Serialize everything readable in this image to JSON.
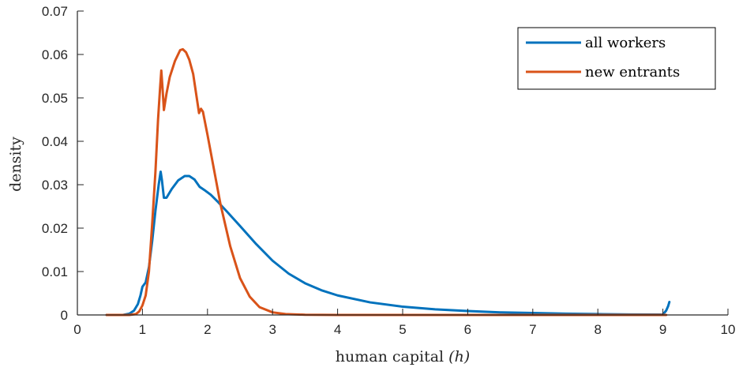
{
  "chart_data": {
    "type": "line",
    "title": "",
    "xlabel": "human capital",
    "xlabel_var": "(h)",
    "ylabel": "density",
    "xlim": [
      0,
      10
    ],
    "ylim": [
      0,
      0.07
    ],
    "x_ticks": [
      0,
      1,
      2,
      3,
      4,
      5,
      6,
      7,
      8,
      9,
      10
    ],
    "x_tick_labels": [
      "0",
      "1",
      "2",
      "3",
      "4",
      "5",
      "6",
      "7",
      "8",
      "9",
      "10"
    ],
    "y_ticks": [
      0,
      0.01,
      0.02,
      0.03,
      0.04,
      0.05,
      0.06,
      0.07
    ],
    "y_tick_labels": [
      "0",
      "0.01",
      "0.02",
      "0.03",
      "0.04",
      "0.05",
      "0.06",
      "0.07"
    ],
    "grid": false,
    "legend_position": "top-right",
    "series": [
      {
        "name": "all workers",
        "color": "#0072BD",
        "x": [
          0.45,
          0.7,
          0.8,
          0.87,
          0.93,
          0.97,
          1.0,
          1.05,
          1.1,
          1.15,
          1.2,
          1.25,
          1.28,
          1.3,
          1.33,
          1.37,
          1.45,
          1.55,
          1.65,
          1.72,
          1.8,
          1.88,
          1.95,
          2.05,
          2.15,
          2.3,
          2.5,
          2.75,
          3.0,
          3.25,
          3.5,
          3.75,
          4.0,
          4.5,
          5.0,
          5.5,
          6.0,
          6.5,
          7.0,
          7.5,
          8.0,
          8.5,
          9.0,
          9.05,
          9.08,
          9.1
        ],
        "y": [
          0.0,
          0.0,
          0.0003,
          0.001,
          0.0025,
          0.0045,
          0.0065,
          0.0075,
          0.011,
          0.017,
          0.024,
          0.03,
          0.033,
          0.031,
          0.027,
          0.027,
          0.029,
          0.031,
          0.032,
          0.032,
          0.0312,
          0.0295,
          0.0288,
          0.0277,
          0.0262,
          0.0238,
          0.0205,
          0.0163,
          0.0125,
          0.0095,
          0.0073,
          0.0057,
          0.0045,
          0.0029,
          0.0019,
          0.0013,
          0.0009,
          0.0006,
          0.00045,
          0.0003,
          0.0002,
          0.00012,
          0.0001,
          0.001,
          0.002,
          0.003
        ]
      },
      {
        "name": "new entrants",
        "color": "#D95319",
        "x": [
          0.45,
          0.8,
          0.9,
          0.95,
          1.0,
          1.05,
          1.1,
          1.15,
          1.2,
          1.24,
          1.27,
          1.29,
          1.31,
          1.33,
          1.37,
          1.42,
          1.5,
          1.58,
          1.62,
          1.67,
          1.72,
          1.78,
          1.83,
          1.87,
          1.9,
          1.93,
          2.0,
          2.1,
          2.2,
          2.35,
          2.5,
          2.65,
          2.8,
          3.0,
          3.2,
          3.5,
          4.0,
          5.0,
          6.0,
          7.0,
          8.0,
          9.0,
          9.05
        ],
        "y": [
          0.0,
          0.0,
          0.0002,
          0.0008,
          0.0022,
          0.0045,
          0.01,
          0.021,
          0.033,
          0.045,
          0.052,
          0.0563,
          0.052,
          0.0472,
          0.051,
          0.0548,
          0.0585,
          0.061,
          0.0612,
          0.0605,
          0.0588,
          0.0555,
          0.0505,
          0.0465,
          0.0475,
          0.0468,
          0.0415,
          0.0335,
          0.0255,
          0.0158,
          0.0085,
          0.0042,
          0.0018,
          0.0006,
          0.0002,
          5e-05,
          0.0,
          0.0,
          0.0,
          0.0,
          0.0,
          0.0,
          0.0
        ]
      }
    ]
  }
}
